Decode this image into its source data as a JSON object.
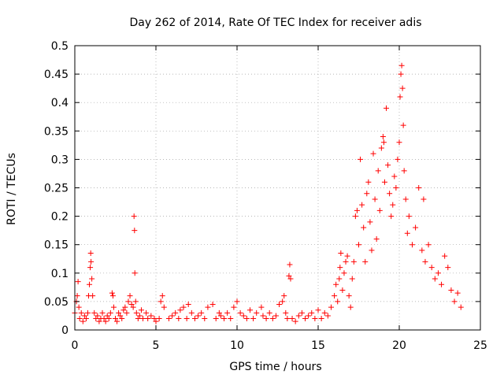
{
  "chart_data": {
    "type": "scatter",
    "title": "Day 262 of 2014, Rate Of TEC Index for receiver adis",
    "xlabel": "GPS time / hours",
    "ylabel": "ROTI / TECUs",
    "xlim": [
      0,
      25
    ],
    "ylim": [
      0,
      0.5
    ],
    "xticks": [
      0,
      5,
      10,
      15,
      20,
      25
    ],
    "xtick_labels": [
      "0",
      "5",
      "10",
      "15",
      "20",
      "25"
    ],
    "yticks": [
      0,
      0.05,
      0.1,
      0.15,
      0.2,
      0.25,
      0.3,
      0.35,
      0.4,
      0.45,
      0.5
    ],
    "ytick_labels": [
      "0",
      "0.05",
      "0.1",
      "0.15",
      "0.2",
      "0.25",
      "0.3",
      "0.35",
      "0.4",
      "0.45",
      "0.5"
    ],
    "grid": true,
    "marker": "+",
    "color": "#ff0000",
    "series": [
      {
        "name": "ROTI",
        "points": [
          [
            0.0,
            0.03
          ],
          [
            0.1,
            0.05
          ],
          [
            0.15,
            0.06
          ],
          [
            0.2,
            0.085
          ],
          [
            0.25,
            0.04
          ],
          [
            0.3,
            0.02
          ],
          [
            0.4,
            0.03
          ],
          [
            0.5,
            0.015
          ],
          [
            0.6,
            0.025
          ],
          [
            0.7,
            0.02
          ],
          [
            0.8,
            0.03
          ],
          [
            0.85,
            0.06
          ],
          [
            0.9,
            0.08
          ],
          [
            0.95,
            0.11
          ],
          [
            0.98,
            0.135
          ],
          [
            1.0,
            0.12
          ],
          [
            1.05,
            0.09
          ],
          [
            1.1,
            0.06
          ],
          [
            1.2,
            0.03
          ],
          [
            1.3,
            0.02
          ],
          [
            1.4,
            0.025
          ],
          [
            1.5,
            0.015
          ],
          [
            1.6,
            0.02
          ],
          [
            1.7,
            0.03
          ],
          [
            1.8,
            0.02
          ],
          [
            1.9,
            0.015
          ],
          [
            2.0,
            0.025
          ],
          [
            2.1,
            0.02
          ],
          [
            2.2,
            0.03
          ],
          [
            2.3,
            0.065
          ],
          [
            2.35,
            0.06
          ],
          [
            2.4,
            0.04
          ],
          [
            2.5,
            0.02
          ],
          [
            2.6,
            0.015
          ],
          [
            2.7,
            0.03
          ],
          [
            2.8,
            0.025
          ],
          [
            2.9,
            0.02
          ],
          [
            3.0,
            0.035
          ],
          [
            3.1,
            0.04
          ],
          [
            3.2,
            0.03
          ],
          [
            3.3,
            0.05
          ],
          [
            3.4,
            0.06
          ],
          [
            3.5,
            0.045
          ],
          [
            3.6,
            0.04
          ],
          [
            3.65,
            0.2
          ],
          [
            3.68,
            0.175
          ],
          [
            3.7,
            0.1
          ],
          [
            3.75,
            0.05
          ],
          [
            3.8,
            0.03
          ],
          [
            3.9,
            0.02
          ],
          [
            4.0,
            0.025
          ],
          [
            4.1,
            0.035
          ],
          [
            4.2,
            0.02
          ],
          [
            4.4,
            0.03
          ],
          [
            4.5,
            0.02
          ],
          [
            4.7,
            0.025
          ],
          [
            4.9,
            0.02
          ],
          [
            5.0,
            0.015
          ],
          [
            5.2,
            0.02
          ],
          [
            5.3,
            0.05
          ],
          [
            5.4,
            0.06
          ],
          [
            5.5,
            0.04
          ],
          [
            5.8,
            0.02
          ],
          [
            6.0,
            0.025
          ],
          [
            6.2,
            0.03
          ],
          [
            6.4,
            0.02
          ],
          [
            6.5,
            0.035
          ],
          [
            6.7,
            0.04
          ],
          [
            6.9,
            0.02
          ],
          [
            7.0,
            0.045
          ],
          [
            7.2,
            0.03
          ],
          [
            7.4,
            0.02
          ],
          [
            7.6,
            0.025
          ],
          [
            7.8,
            0.03
          ],
          [
            8.0,
            0.02
          ],
          [
            8.2,
            0.04
          ],
          [
            8.5,
            0.045
          ],
          [
            8.7,
            0.02
          ],
          [
            8.9,
            0.03
          ],
          [
            9.0,
            0.025
          ],
          [
            9.2,
            0.02
          ],
          [
            9.4,
            0.03
          ],
          [
            9.6,
            0.02
          ],
          [
            9.8,
            0.04
          ],
          [
            10.0,
            0.05
          ],
          [
            10.2,
            0.03
          ],
          [
            10.4,
            0.025
          ],
          [
            10.6,
            0.02
          ],
          [
            10.8,
            0.035
          ],
          [
            11.0,
            0.02
          ],
          [
            11.2,
            0.03
          ],
          [
            11.5,
            0.04
          ],
          [
            11.6,
            0.025
          ],
          [
            11.8,
            0.02
          ],
          [
            12.0,
            0.03
          ],
          [
            12.2,
            0.02
          ],
          [
            12.4,
            0.025
          ],
          [
            12.6,
            0.045
          ],
          [
            12.8,
            0.05
          ],
          [
            12.9,
            0.06
          ],
          [
            13.0,
            0.03
          ],
          [
            13.1,
            0.02
          ],
          [
            13.2,
            0.095
          ],
          [
            13.25,
            0.115
          ],
          [
            13.3,
            0.09
          ],
          [
            13.4,
            0.02
          ],
          [
            13.6,
            0.015
          ],
          [
            13.8,
            0.025
          ],
          [
            14.0,
            0.03
          ],
          [
            14.2,
            0.02
          ],
          [
            14.4,
            0.025
          ],
          [
            14.6,
            0.03
          ],
          [
            14.8,
            0.02
          ],
          [
            15.0,
            0.035
          ],
          [
            15.2,
            0.02
          ],
          [
            15.4,
            0.03
          ],
          [
            15.6,
            0.025
          ],
          [
            15.8,
            0.04
          ],
          [
            16.0,
            0.06
          ],
          [
            16.1,
            0.08
          ],
          [
            16.2,
            0.05
          ],
          [
            16.3,
            0.09
          ],
          [
            16.35,
            0.11
          ],
          [
            16.4,
            0.135
          ],
          [
            16.5,
            0.07
          ],
          [
            16.6,
            0.1
          ],
          [
            16.7,
            0.12
          ],
          [
            16.8,
            0.13
          ],
          [
            16.9,
            0.06
          ],
          [
            17.0,
            0.04
          ],
          [
            17.1,
            0.09
          ],
          [
            17.2,
            0.12
          ],
          [
            17.3,
            0.2
          ],
          [
            17.4,
            0.21
          ],
          [
            17.5,
            0.15
          ],
          [
            17.6,
            0.3
          ],
          [
            17.7,
            0.22
          ],
          [
            17.8,
            0.18
          ],
          [
            17.9,
            0.12
          ],
          [
            18.0,
            0.24
          ],
          [
            18.1,
            0.26
          ],
          [
            18.2,
            0.19
          ],
          [
            18.3,
            0.14
          ],
          [
            18.4,
            0.31
          ],
          [
            18.5,
            0.23
          ],
          [
            18.6,
            0.16
          ],
          [
            18.7,
            0.28
          ],
          [
            18.8,
            0.21
          ],
          [
            18.9,
            0.32
          ],
          [
            19.0,
            0.34
          ],
          [
            19.05,
            0.33
          ],
          [
            19.1,
            0.26
          ],
          [
            19.2,
            0.39
          ],
          [
            19.3,
            0.29
          ],
          [
            19.4,
            0.24
          ],
          [
            19.5,
            0.2
          ],
          [
            19.6,
            0.22
          ],
          [
            19.7,
            0.27
          ],
          [
            19.8,
            0.25
          ],
          [
            19.9,
            0.3
          ],
          [
            20.0,
            0.33
          ],
          [
            20.05,
            0.41
          ],
          [
            20.1,
            0.45
          ],
          [
            20.15,
            0.465
          ],
          [
            20.2,
            0.425
          ],
          [
            20.25,
            0.36
          ],
          [
            20.3,
            0.28
          ],
          [
            20.4,
            0.23
          ],
          [
            20.5,
            0.17
          ],
          [
            20.6,
            0.2
          ],
          [
            20.8,
            0.15
          ],
          [
            21.0,
            0.18
          ],
          [
            21.2,
            0.25
          ],
          [
            21.4,
            0.14
          ],
          [
            21.5,
            0.23
          ],
          [
            21.6,
            0.12
          ],
          [
            21.8,
            0.15
          ],
          [
            22.0,
            0.11
          ],
          [
            22.2,
            0.09
          ],
          [
            22.4,
            0.1
          ],
          [
            22.6,
            0.08
          ],
          [
            22.8,
            0.13
          ],
          [
            23.0,
            0.11
          ],
          [
            23.2,
            0.07
          ],
          [
            23.4,
            0.05
          ],
          [
            23.6,
            0.065
          ],
          [
            23.8,
            0.04
          ]
        ]
      }
    ]
  }
}
